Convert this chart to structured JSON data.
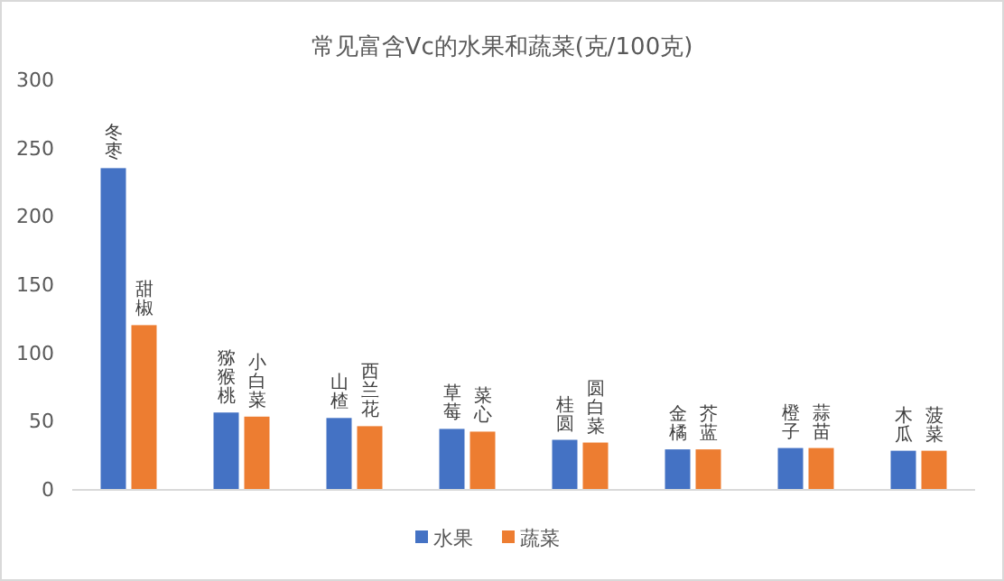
{
  "chart_data": {
    "type": "bar",
    "title": "常见富含Vc的水果和蔬菜(克/100克)",
    "categories": [
      null,
      null,
      null,
      null,
      null,
      null,
      null,
      null
    ],
    "series": [
      {
        "name": "水果",
        "color": "#4472c4",
        "values": [
          235,
          56,
          52,
          44,
          36,
          29,
          30,
          28
        ],
        "value_labels": [
          "冬枣",
          "猕猴桃",
          "山楂",
          "草莓",
          "桂圆",
          "金橘",
          "橙子",
          "木瓜"
        ]
      },
      {
        "name": "蔬菜",
        "color": "#ed7d31",
        "values": [
          120,
          53,
          46,
          42,
          34,
          29,
          30,
          28
        ],
        "value_labels": [
          "甜椒",
          "小白菜",
          "西兰花",
          "菜心",
          "圆白菜",
          "芥蓝",
          "蒜苗",
          "菠菜"
        ]
      }
    ],
    "ylim": [
      0,
      300
    ],
    "yticks": [
      0,
      50,
      100,
      150,
      200,
      250,
      300
    ],
    "grid": false,
    "legend": "bottom"
  }
}
